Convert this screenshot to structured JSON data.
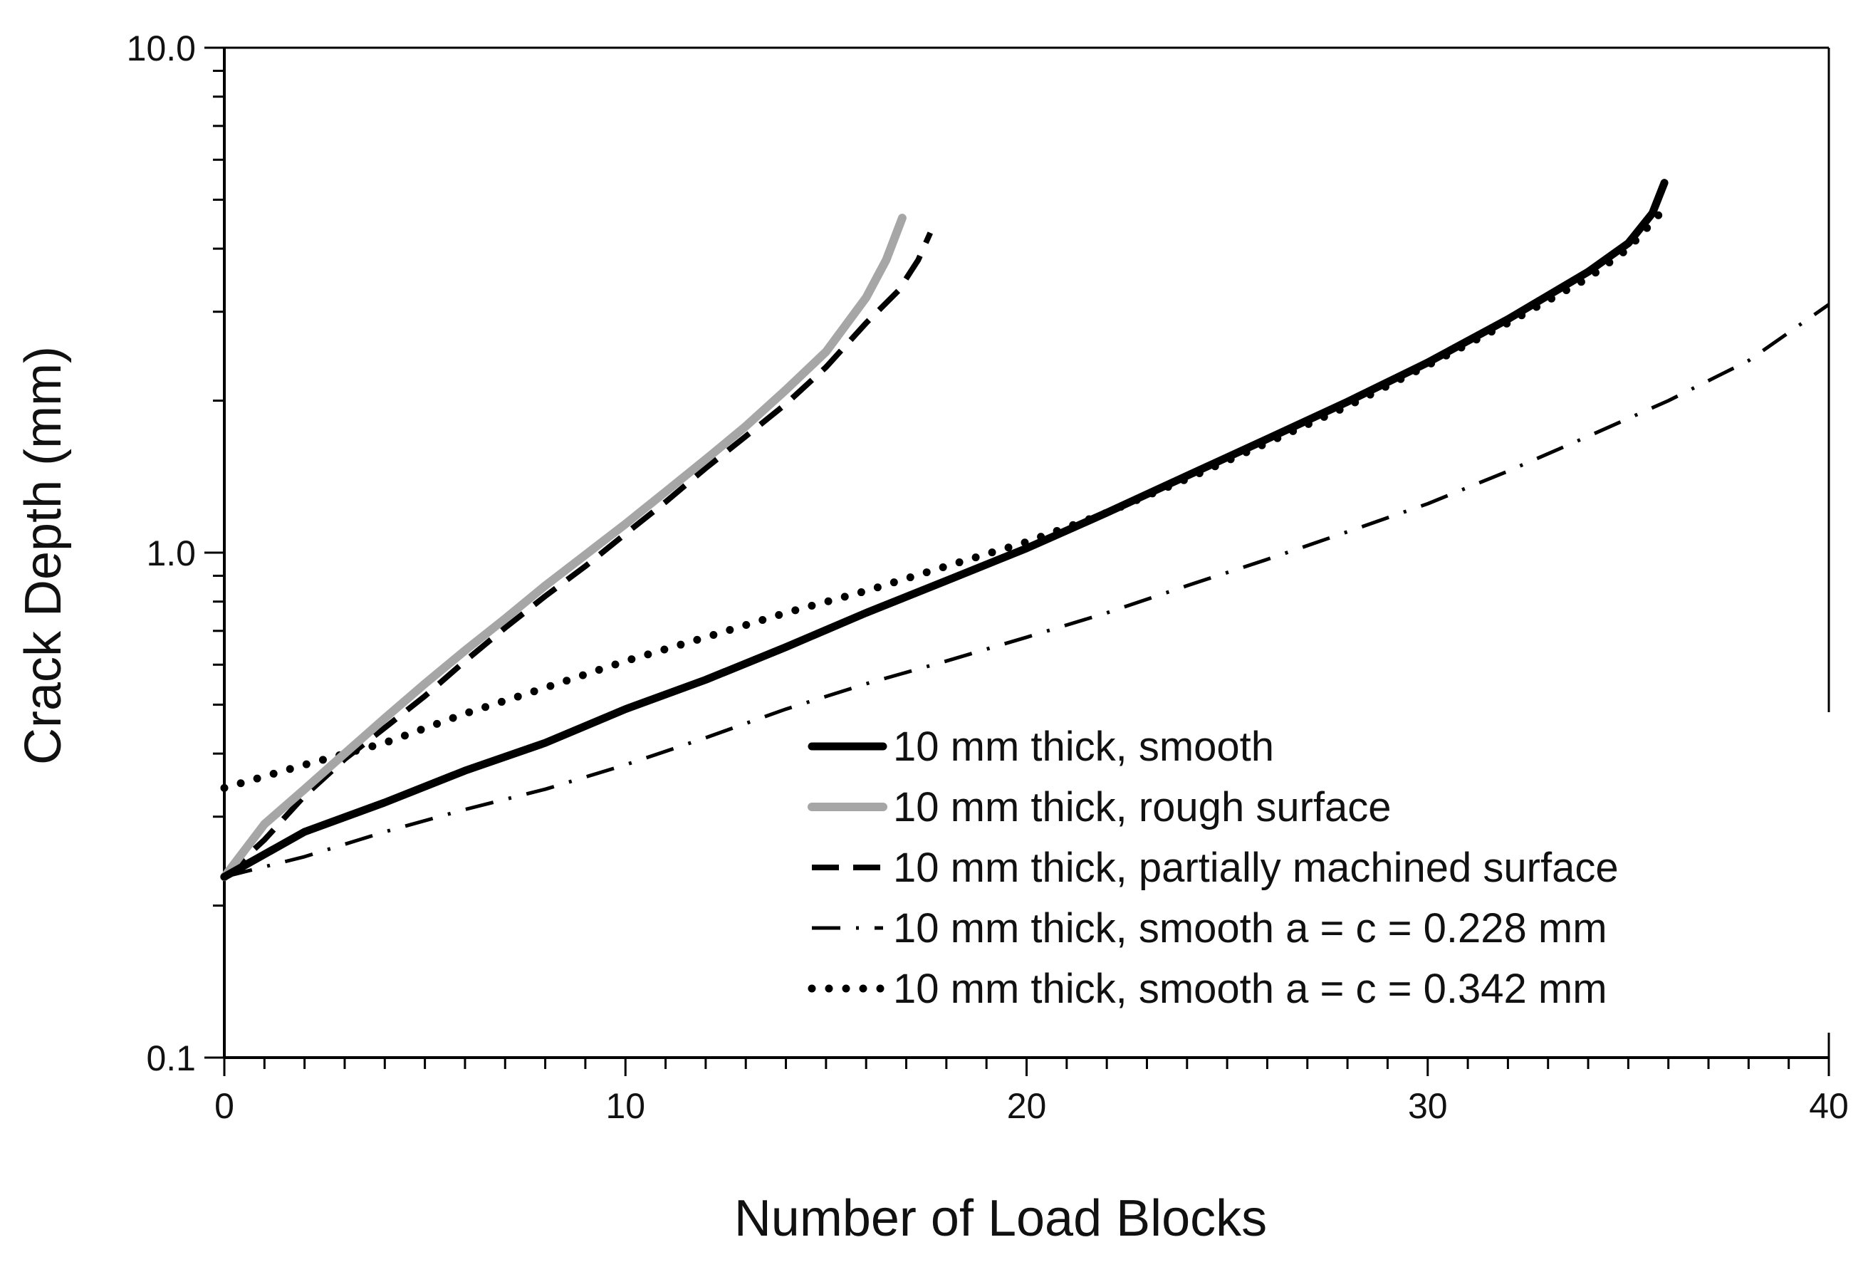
{
  "chart_data": {
    "type": "line",
    "title": "",
    "xlabel": "Number of Load Blocks",
    "ylabel": "Crack Depth (mm)",
    "xlim": [
      0,
      40
    ],
    "ylim": [
      0.1,
      10
    ],
    "yscale": "log",
    "grid": false,
    "x_ticks": [
      0,
      10,
      20,
      30,
      40
    ],
    "x_tick_labels": [
      "0",
      "10",
      "20",
      "30",
      "40"
    ],
    "y_ticks": [
      0.1,
      1,
      10
    ],
    "y_tick_labels": [
      "0.1",
      "1.0",
      "10.0"
    ],
    "legend_position": "bottom-right",
    "series": [
      {
        "name": "10 mm thick, smooth",
        "style": "solid",
        "color": "#000000",
        "x": [
          0,
          2,
          4,
          6,
          8,
          10,
          12,
          14,
          16,
          18,
          20,
          22,
          24,
          26,
          28,
          30,
          32,
          34,
          35,
          35.6,
          35.9
        ],
        "y": [
          0.228,
          0.28,
          0.32,
          0.37,
          0.42,
          0.49,
          0.56,
          0.65,
          0.76,
          0.88,
          1.02,
          1.2,
          1.42,
          1.68,
          1.99,
          2.38,
          2.9,
          3.6,
          4.1,
          4.7,
          5.4
        ]
      },
      {
        "name": "10 mm thick, rough surface",
        "style": "solid",
        "color": "#a6a6a6",
        "x": [
          0,
          1,
          2,
          3,
          4,
          5,
          6,
          7,
          8,
          9,
          10,
          11,
          12,
          13,
          14,
          15,
          16,
          16.5,
          16.9
        ],
        "y": [
          0.228,
          0.29,
          0.34,
          0.4,
          0.47,
          0.55,
          0.64,
          0.74,
          0.86,
          0.99,
          1.14,
          1.32,
          1.53,
          1.78,
          2.1,
          2.5,
          3.2,
          3.8,
          4.6
        ]
      },
      {
        "name": "10 mm thick, partially machined surface",
        "style": "dashed",
        "color": "#000000",
        "x": [
          0,
          1,
          2,
          3,
          4,
          5,
          6,
          7,
          8,
          9,
          10,
          11,
          12,
          13,
          14,
          15,
          16,
          16.8,
          17.3,
          17.6
        ],
        "y": [
          0.228,
          0.27,
          0.33,
          0.39,
          0.45,
          0.52,
          0.61,
          0.71,
          0.82,
          0.94,
          1.09,
          1.26,
          1.47,
          1.7,
          1.97,
          2.33,
          2.85,
          3.3,
          3.8,
          4.3
        ]
      },
      {
        "name": "10 mm thick, smooth a = c = 0.228 mm",
        "style": "dash-dot",
        "color": "#000000",
        "x": [
          0,
          2,
          4,
          6,
          8,
          10,
          12,
          14,
          16,
          18,
          20,
          22,
          24,
          26,
          28,
          30,
          32,
          34,
          36,
          38,
          40
        ],
        "y": [
          0.228,
          0.25,
          0.28,
          0.31,
          0.34,
          0.38,
          0.43,
          0.49,
          0.55,
          0.61,
          0.68,
          0.76,
          0.86,
          0.97,
          1.1,
          1.25,
          1.45,
          1.7,
          2.0,
          2.4,
          3.1
        ]
      },
      {
        "name": "10 mm thick, smooth a = c = 0.342 mm",
        "style": "dotted",
        "color": "#000000",
        "x": [
          0,
          2,
          4,
          6,
          8,
          10,
          12,
          14,
          16,
          18,
          20,
          22,
          24,
          26,
          28,
          30,
          32,
          34,
          35,
          36
        ],
        "y": [
          0.342,
          0.38,
          0.42,
          0.48,
          0.54,
          0.61,
          0.68,
          0.76,
          0.84,
          0.94,
          1.05,
          1.2,
          1.4,
          1.65,
          1.95,
          2.35,
          2.85,
          3.5,
          4.0,
          4.9
        ]
      }
    ]
  }
}
